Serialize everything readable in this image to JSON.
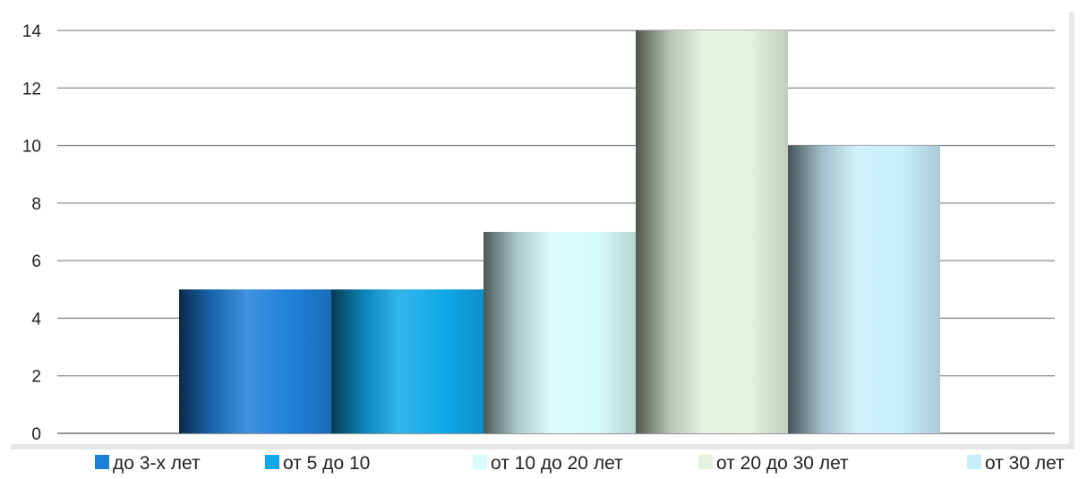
{
  "chart_data": {
    "type": "bar",
    "categories": [
      ""
    ],
    "series": [
      {
        "name": "до 3-х лет",
        "values": [
          5
        ],
        "color": "#1E7FD8"
      },
      {
        "name": "от 5 до 10",
        "values": [
          5
        ],
        "color": "#0FA8E8"
      },
      {
        "name": "от 10 до 20 лет",
        "values": [
          7
        ],
        "color": "#D6FBFB"
      },
      {
        "name": "от 20 до 30 лет",
        "values": [
          14
        ],
        "color": "#E4F2DE"
      },
      {
        "name": "от 30 лет",
        "values": [
          10
        ],
        "color": "#C9EEFB"
      }
    ],
    "title": "",
    "xlabel": "",
    "ylabel": "",
    "ylim": [
      0,
      14
    ],
    "yticks": [
      0,
      2,
      4,
      6,
      8,
      10,
      12,
      14
    ],
    "grid": true,
    "legend_position": "bottom"
  }
}
